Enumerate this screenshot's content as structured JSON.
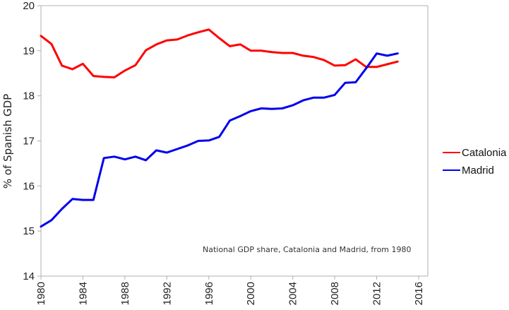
{
  "chart_data": {
    "type": "line",
    "title": "",
    "annotation": "National GDP share, Catalonia and Madrid, from 1980",
    "xlabel": "",
    "ylabel": "% of Spanish GDP",
    "xlim": [
      1980,
      2016
    ],
    "ylim": [
      14,
      20
    ],
    "xticks": [
      "1980",
      "1984",
      "1988",
      "1992",
      "1996",
      "2000",
      "2004",
      "2008",
      "2012",
      "2016"
    ],
    "yticks": [
      "14",
      "15",
      "16",
      "17",
      "18",
      "19",
      "20"
    ],
    "grid": false,
    "legend_position": "right",
    "x": [
      1980,
      1981,
      1982,
      1983,
      1984,
      1985,
      1986,
      1987,
      1988,
      1989,
      1990,
      1991,
      1992,
      1993,
      1994,
      1995,
      1996,
      1997,
      1998,
      1999,
      2000,
      2001,
      2002,
      2003,
      2004,
      2005,
      2006,
      2007,
      2008,
      2009,
      2010,
      2011,
      2012,
      2013,
      2014
    ],
    "series": [
      {
        "name": "Catalonia",
        "color": "#ff0000",
        "values": [
          19.33,
          19.15,
          18.67,
          18.59,
          18.71,
          18.44,
          18.42,
          18.41,
          18.56,
          18.68,
          19.01,
          19.14,
          19.23,
          19.25,
          19.34,
          19.41,
          19.47,
          19.28,
          19.1,
          19.14,
          19.0,
          19.0,
          18.97,
          18.95,
          18.95,
          18.89,
          18.86,
          18.79,
          18.67,
          18.68,
          18.81,
          18.64,
          18.64,
          18.7,
          18.76
        ]
      },
      {
        "name": "Madrid",
        "color": "#0000ee",
        "values": [
          15.1,
          15.24,
          15.49,
          15.71,
          15.69,
          15.69,
          16.62,
          16.65,
          16.59,
          16.65,
          16.57,
          16.79,
          16.74,
          16.82,
          16.9,
          17.0,
          17.01,
          17.09,
          17.45,
          17.55,
          17.66,
          17.72,
          17.71,
          17.72,
          17.79,
          17.9,
          17.96,
          17.96,
          18.02,
          18.29,
          18.3,
          18.61,
          18.94,
          18.89,
          18.94
        ]
      }
    ]
  }
}
